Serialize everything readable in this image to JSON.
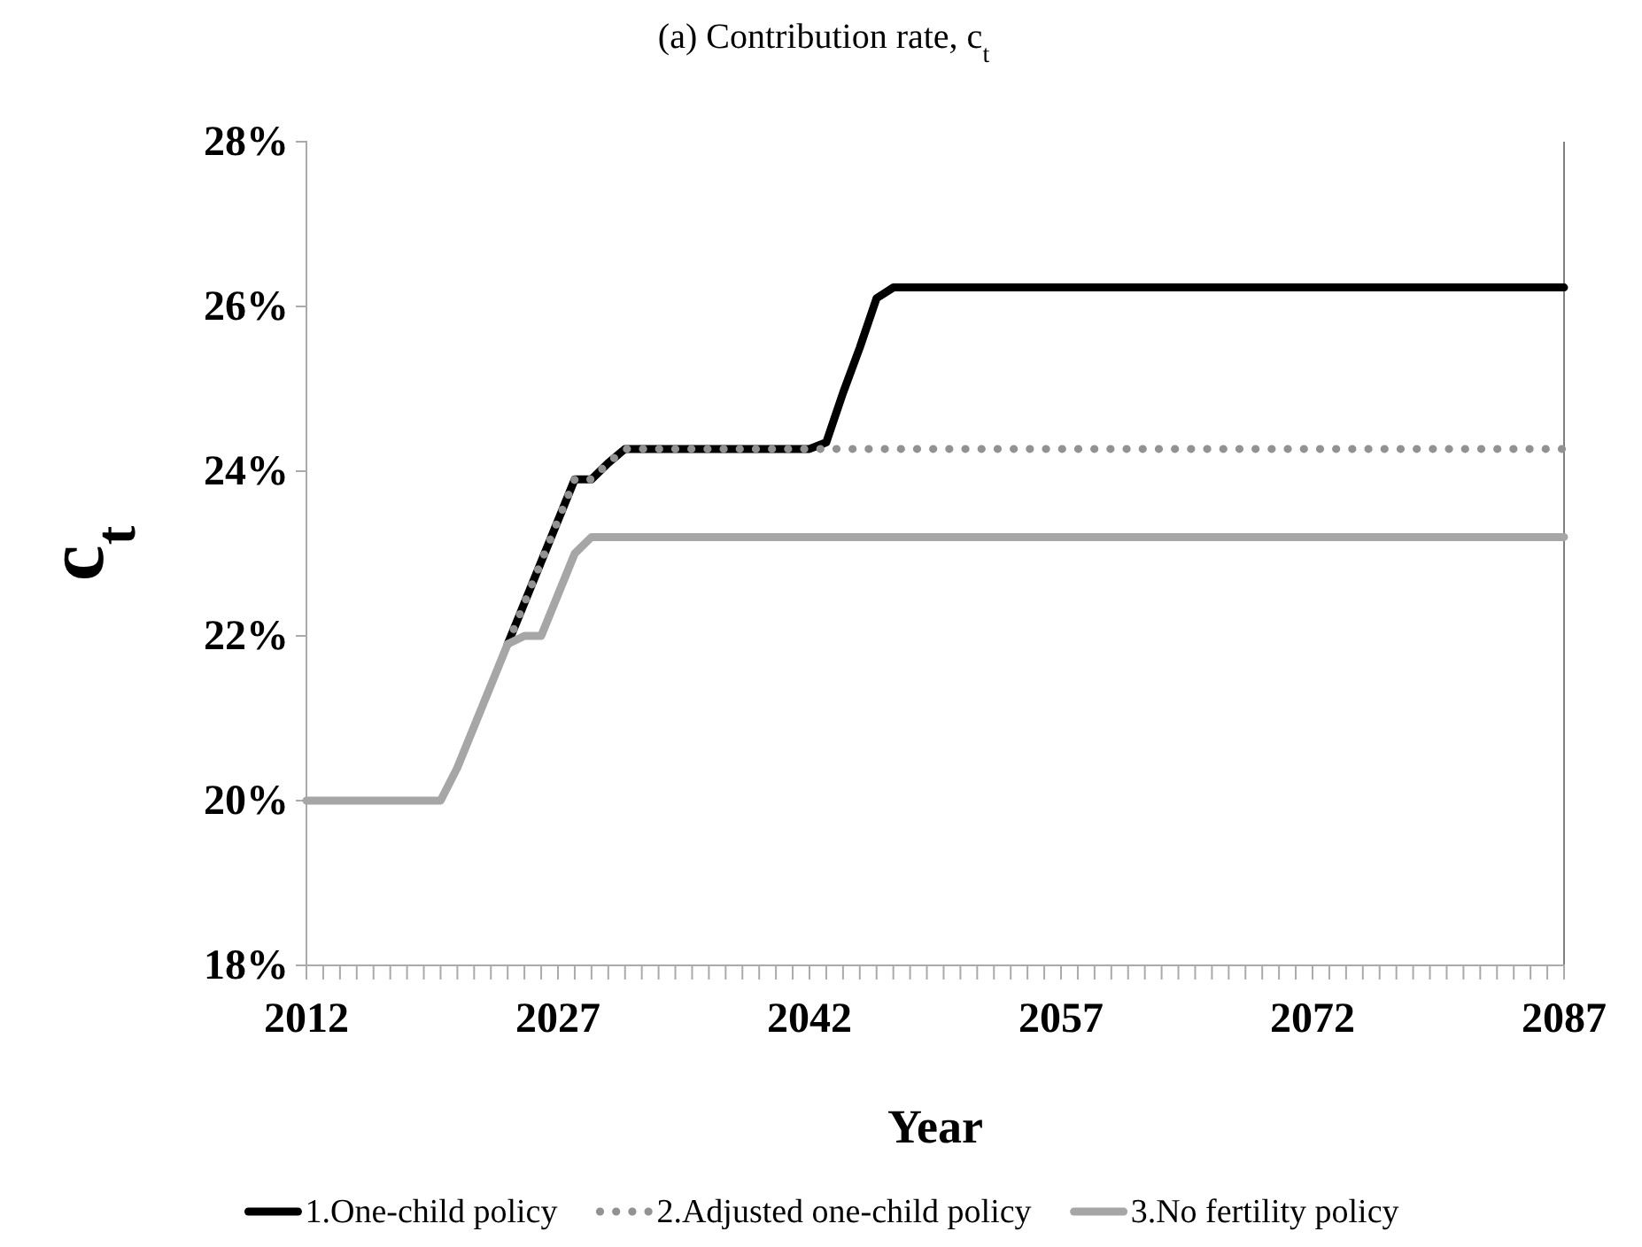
{
  "chart_data": {
    "type": "line",
    "title": "(a) Contribution rate, c$_{t}$",
    "xlabel": "Year",
    "ylabel": "c$_{t}$",
    "x": [
      2012,
      2013,
      2014,
      2015,
      2016,
      2017,
      2018,
      2019,
      2020,
      2021,
      2022,
      2023,
      2024,
      2025,
      2026,
      2027,
      2028,
      2029,
      2030,
      2031,
      2032,
      2033,
      2034,
      2035,
      2036,
      2037,
      2038,
      2039,
      2040,
      2041,
      2042,
      2043,
      2044,
      2045,
      2046,
      2047,
      2048,
      2049,
      2050,
      2051,
      2052,
      2053,
      2054,
      2055,
      2056,
      2057,
      2058,
      2059,
      2060,
      2061,
      2062,
      2063,
      2064,
      2065,
      2066,
      2067,
      2068,
      2069,
      2070,
      2071,
      2072,
      2073,
      2074,
      2075,
      2076,
      2077,
      2078,
      2079,
      2080,
      2081,
      2082,
      2083,
      2084,
      2085,
      2086,
      2087
    ],
    "xlim": [
      2012,
      2087
    ],
    "xticks": [
      2012,
      {
        "value": 2013,
        "label": null
      },
      {
        "value": 2014,
        "label": null
      },
      {
        "value": 2015,
        "label": null
      },
      {
        "value": 2016,
        "label": null
      },
      {
        "value": 2017,
        "label": null
      },
      {
        "value": 2018,
        "label": null
      },
      {
        "value": 2019,
        "label": null
      },
      {
        "value": 2020,
        "label": null
      },
      {
        "value": 2021,
        "label": null
      },
      {
        "value": 2022,
        "label": null
      },
      {
        "value": 2023,
        "label": null
      },
      {
        "value": 2024,
        "label": null
      },
      {
        "value": 2025,
        "label": null
      },
      {
        "value": 2026,
        "label": null
      },
      2027,
      {
        "value": 2028,
        "label": null
      },
      {
        "value": 2029,
        "label": null
      },
      {
        "value": 2030,
        "label": null
      },
      {
        "value": 2031,
        "label": null
      },
      {
        "value": 2032,
        "label": null
      },
      {
        "value": 2033,
        "label": null
      },
      {
        "value": 2034,
        "label": null
      },
      {
        "value": 2035,
        "label": null
      },
      {
        "value": 2036,
        "label": null
      },
      {
        "value": 2037,
        "label": null
      },
      {
        "value": 2038,
        "label": null
      },
      {
        "value": 2039,
        "label": null
      },
      {
        "value": 2040,
        "label": null
      },
      {
        "value": 2041,
        "label": null
      },
      2042,
      {
        "value": 2043,
        "label": null
      },
      {
        "value": 2044,
        "label": null
      },
      {
        "value": 2045,
        "label": null
      },
      {
        "value": 2046,
        "label": null
      },
      {
        "value": 2047,
        "label": null
      },
      {
        "value": 2048,
        "label": null
      },
      {
        "value": 2049,
        "label": null
      },
      {
        "value": 2050,
        "label": null
      },
      {
        "value": 2051,
        "label": null
      },
      {
        "value": 2052,
        "label": null
      },
      {
        "value": 2053,
        "label": null
      },
      {
        "value": 2054,
        "label": null
      },
      {
        "value": 2055,
        "label": null
      },
      {
        "value": 2056,
        "label": null
      },
      2057,
      {
        "value": 2058,
        "label": null
      },
      {
        "value": 2059,
        "label": null
      },
      {
        "value": 2060,
        "label": null
      },
      {
        "value": 2061,
        "label": null
      },
      {
        "value": 2062,
        "label": null
      },
      {
        "value": 2063,
        "label": null
      },
      {
        "value": 2064,
        "label": null
      },
      {
        "value": 2065,
        "label": null
      },
      {
        "value": 2066,
        "label": null
      },
      {
        "value": 2067,
        "label": null
      },
      {
        "value": 2068,
        "label": null
      },
      {
        "value": 2069,
        "label": null
      },
      {
        "value": 2070,
        "label": null
      },
      {
        "value": 2071,
        "label": null
      },
      2072,
      {
        "value": 2073,
        "label": null
      },
      {
        "value": 2074,
        "label": null
      },
      {
        "value": 2075,
        "label": null
      },
      {
        "value": 2076,
        "label": null
      },
      {
        "value": 2077,
        "label": null
      },
      {
        "value": 2078,
        "label": null
      },
      {
        "value": 2079,
        "label": null
      },
      {
        "value": 2080,
        "label": null
      },
      {
        "value": 2081,
        "label": null
      },
      {
        "value": 2082,
        "label": null
      },
      {
        "value": 2083,
        "label": null
      },
      {
        "value": 2084,
        "label": null
      },
      {
        "value": 2085,
        "label": null
      },
      {
        "value": 2086,
        "label": null
      },
      2087
    ],
    "ylim": [
      18,
      28
    ],
    "yticks": [
      {
        "value": 18,
        "label": "18%"
      },
      {
        "value": 20,
        "label": "20%"
      },
      {
        "value": 22,
        "label": "22%"
      },
      {
        "value": 24,
        "label": "24%"
      },
      {
        "value": 26,
        "label": "26%"
      },
      {
        "value": 28,
        "label": "28%"
      }
    ],
    "legend": "bottom",
    "series": [
      {
        "name": "1.One-child policy",
        "color": "#000000",
        "line_style": "solid",
        "values": [
          null,
          null,
          null,
          null,
          null,
          null,
          null,
          null,
          null,
          null,
          null,
          null,
          21.9,
          22.4,
          22.9,
          23.4,
          23.9,
          23.9,
          24.1,
          24.27,
          24.27,
          24.27,
          24.27,
          24.27,
          24.27,
          24.27,
          24.27,
          24.27,
          24.27,
          24.27,
          24.27,
          24.35,
          24.95,
          25.5,
          26.1,
          26.23,
          26.23,
          26.23,
          26.23,
          26.23,
          26.23,
          26.23,
          26.23,
          26.23,
          26.23,
          26.23,
          26.23,
          26.23,
          26.23,
          26.23,
          26.23,
          26.23,
          26.23,
          26.23,
          26.23,
          26.23,
          26.23,
          26.23,
          26.23,
          26.23,
          26.23,
          26.23,
          26.23,
          26.23,
          26.23,
          26.23,
          26.23,
          26.23,
          26.23,
          26.23,
          26.23,
          26.23,
          26.23,
          26.23,
          26.23,
          26.23
        ]
      },
      {
        "name": "2.Adjusted one-child policy",
        "color": "#929292",
        "line_style": "dotted",
        "values": [
          null,
          null,
          null,
          null,
          null,
          null,
          null,
          null,
          null,
          null,
          null,
          null,
          21.9,
          22.4,
          22.9,
          23.4,
          23.9,
          23.9,
          24.1,
          24.27,
          24.27,
          24.27,
          24.27,
          24.27,
          24.27,
          24.27,
          24.27,
          24.27,
          24.27,
          24.27,
          24.27,
          24.27,
          24.27,
          24.27,
          24.27,
          24.27,
          24.27,
          24.27,
          24.27,
          24.27,
          24.27,
          24.27,
          24.27,
          24.27,
          24.27,
          24.27,
          24.27,
          24.27,
          24.27,
          24.27,
          24.27,
          24.27,
          24.27,
          24.27,
          24.27,
          24.27,
          24.27,
          24.27,
          24.27,
          24.27,
          24.27,
          24.27,
          24.27,
          24.27,
          24.27,
          24.27,
          24.27,
          24.27,
          24.27,
          24.27,
          24.27,
          24.27,
          24.27,
          24.27,
          24.27,
          24.27
        ]
      },
      {
        "name": "3.No fertility policy",
        "color": "#a6a6a6",
        "line_style": "solid",
        "values": [
          20,
          20,
          20,
          20,
          20,
          20,
          20,
          20,
          20,
          20.4,
          20.9,
          21.4,
          21.9,
          22.0,
          22.0,
          22.5,
          23.0,
          23.2,
          23.2,
          23.2,
          23.2,
          23.2,
          23.2,
          23.2,
          23.2,
          23.2,
          23.2,
          23.2,
          23.2,
          23.2,
          23.2,
          23.2,
          23.2,
          23.2,
          23.2,
          23.2,
          23.2,
          23.2,
          23.2,
          23.2,
          23.2,
          23.2,
          23.2,
          23.2,
          23.2,
          23.2,
          23.2,
          23.2,
          23.2,
          23.2,
          23.2,
          23.2,
          23.2,
          23.2,
          23.2,
          23.2,
          23.2,
          23.2,
          23.2,
          23.2,
          23.2,
          23.2,
          23.2,
          23.2,
          23.2,
          23.2,
          23.2,
          23.2,
          23.2,
          23.2,
          23.2,
          23.2,
          23.2,
          23.2,
          23.2,
          23.2
        ]
      }
    ]
  }
}
